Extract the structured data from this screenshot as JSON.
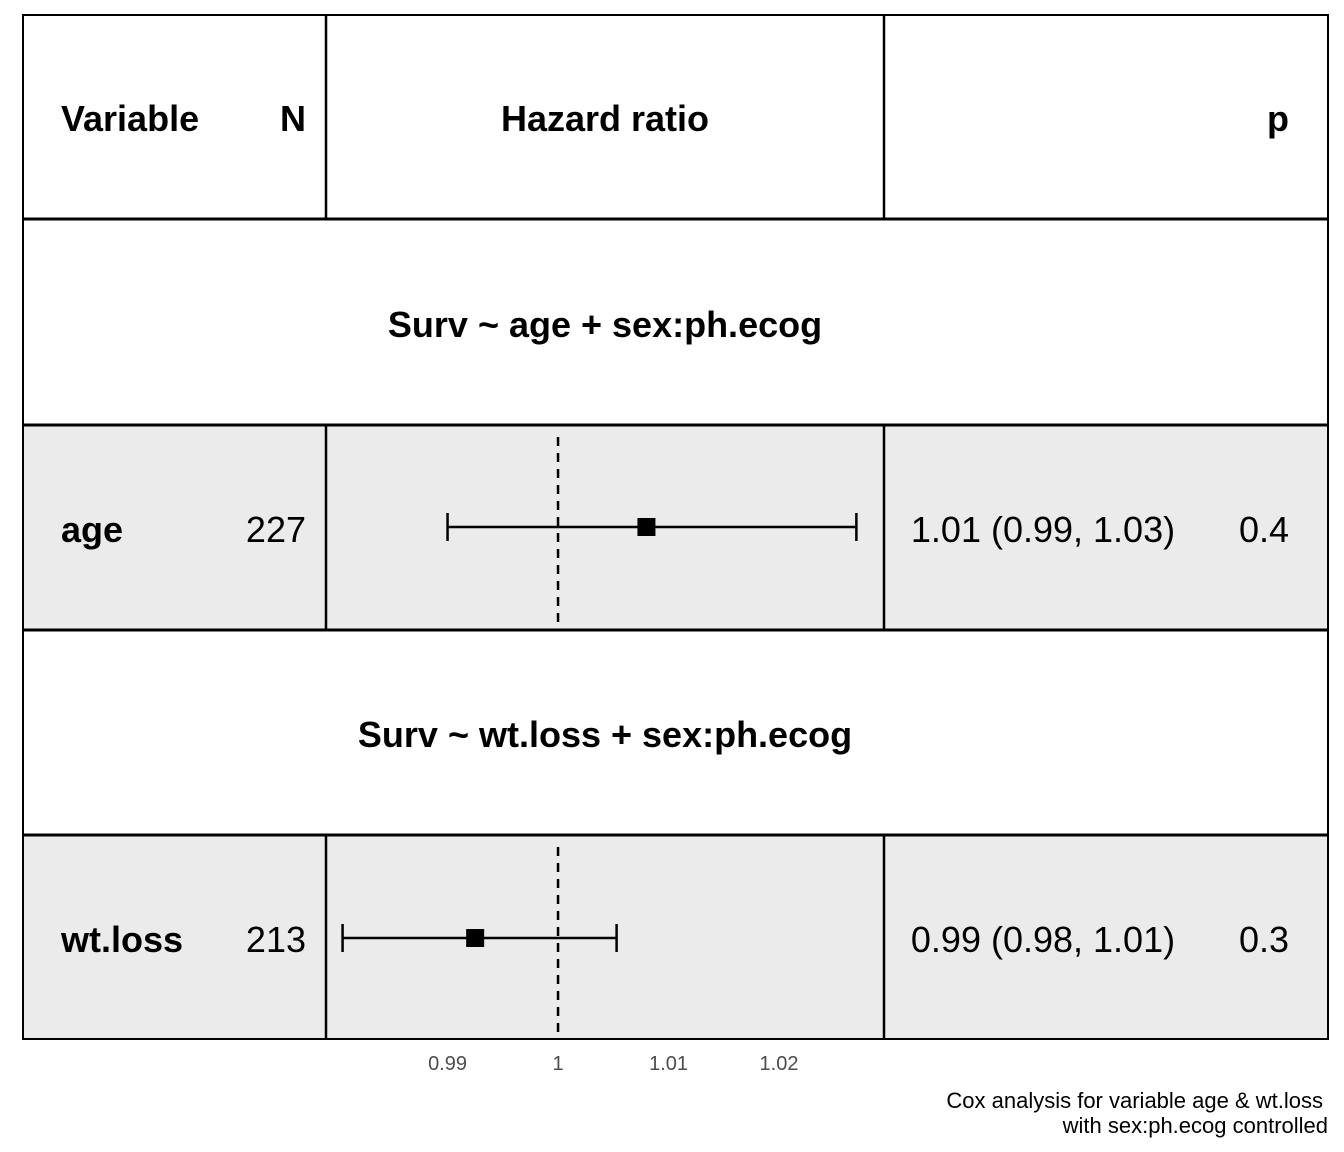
{
  "chart_data": {
    "type": "forest",
    "headers": {
      "variable": "Variable",
      "n": "N",
      "hazard_ratio": "Hazard ratio",
      "p": "p"
    },
    "groups": [
      {
        "formula": "Surv ~ age + sex:ph.ecog",
        "rows": [
          {
            "variable": "age",
            "n": "227",
            "hr": 1.008,
            "lower": 0.99,
            "upper": 1.027,
            "estimate_text": "1.01 (0.99, 1.03)",
            "p": "0.4"
          }
        ]
      },
      {
        "formula": "Surv ~ wt.loss + sex:ph.ecog",
        "rows": [
          {
            "variable": "wt.loss",
            "n": "213",
            "hr": 0.9925,
            "lower": 0.9805,
            "upper": 1.0053,
            "estimate_text": "0.99 (0.98, 1.01)",
            "p": "0.3"
          }
        ]
      }
    ],
    "x_ticks": [
      0.99,
      1,
      1.01,
      1.02
    ],
    "x_tick_labels": [
      "0.99",
      "1",
      "1.01",
      "1.02"
    ],
    "xlim": [
      0.979,
      1.0295
    ],
    "reference_line": 1,
    "caption_lines": [
      "Cox analysis for variable age & wt.loss",
      "with sex:ph.ecog controlled"
    ],
    "colors": {
      "shaded_row": "#ebebeb",
      "border": "#000000",
      "tick_text": "#4d4d4d"
    }
  }
}
